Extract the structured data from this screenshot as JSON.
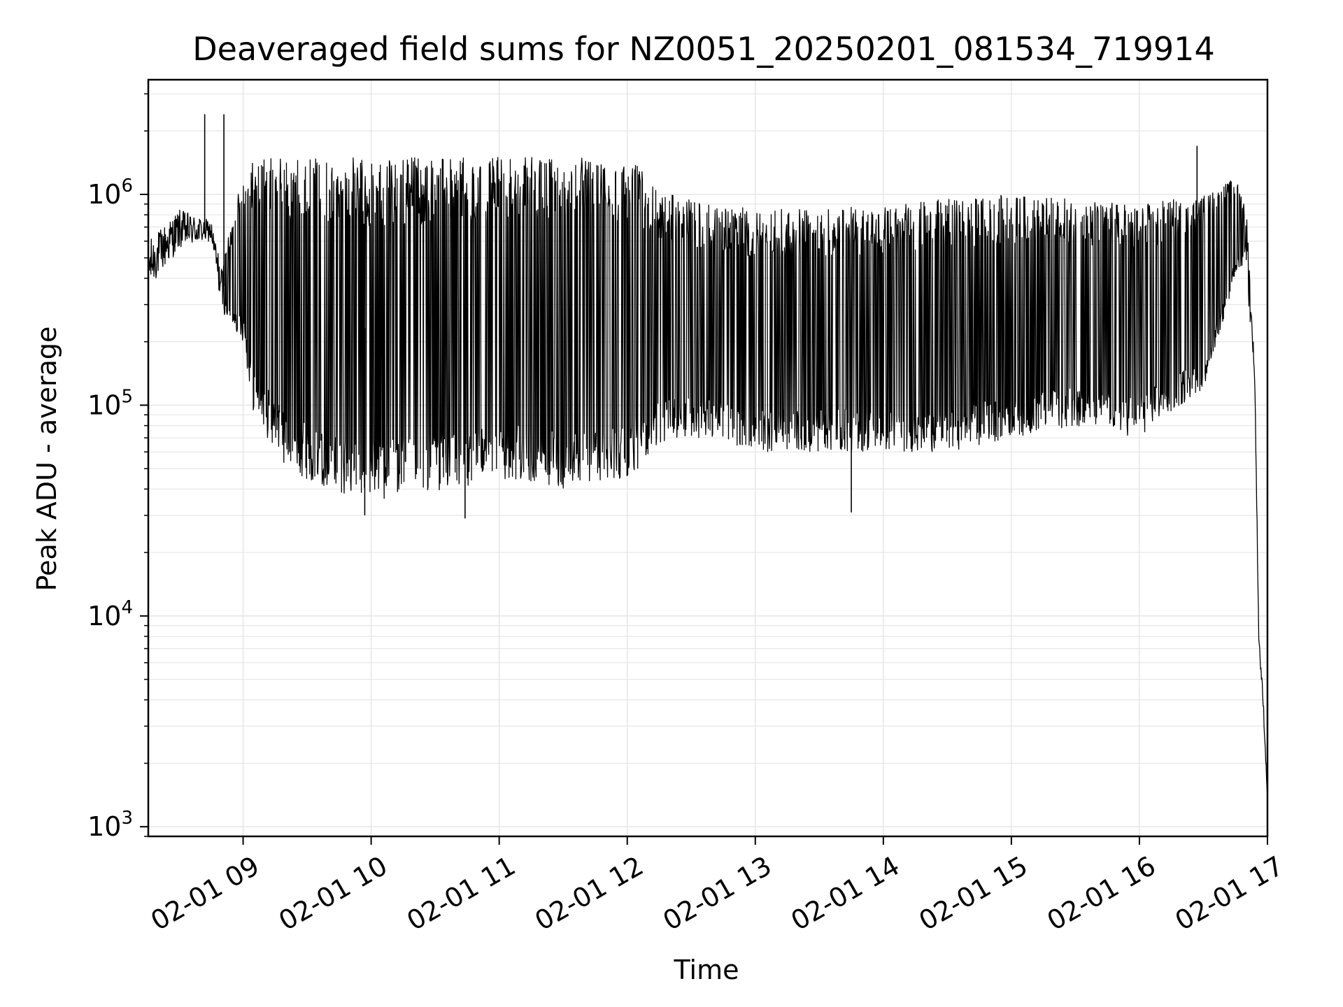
{
  "chart_data": {
    "type": "line",
    "title": "Deaveraged field sums for NZ0051_20250201_081534_719914",
    "xlabel": "Time",
    "ylabel": "Peak ADU - average",
    "yscale": "log",
    "ylim": [
      900,
      3500000
    ],
    "xlim": [
      "2025-02-01 08:15:34",
      "2025-02-01 17:00:00"
    ],
    "x_tick_labels": [
      "02-01 09",
      "02-01 10",
      "02-01 11",
      "02-01 12",
      "02-01 13",
      "02-01 14",
      "02-01 15",
      "02-01 16",
      "02-01 17"
    ],
    "y_tick_labels": [
      {
        "base": "10",
        "exp": "3"
      },
      {
        "base": "10",
        "exp": "4"
      },
      {
        "base": "10",
        "exp": "5"
      },
      {
        "base": "10",
        "exp": "6"
      }
    ],
    "grid": true,
    "colors": {
      "line": "#000000",
      "grid": "#e6e6e6",
      "axes": "#000000"
    },
    "envelope": {
      "x": [
        "2025-02-01 08:15:34",
        "2025-02-01 08:30",
        "2025-02-01 08:45",
        "2025-02-01 08:50",
        "2025-02-01 09:00",
        "2025-02-01 09:05",
        "2025-02-01 09:20",
        "2025-02-01 09:40",
        "2025-02-01 10:00",
        "2025-02-01 10:20",
        "2025-02-01 10:40",
        "2025-02-01 11:00",
        "2025-02-01 11:30",
        "2025-02-01 12:00",
        "2025-02-01 12:20",
        "2025-02-01 12:40",
        "2025-02-01 13:00",
        "2025-02-01 13:30",
        "2025-02-01 14:00",
        "2025-02-01 14:30",
        "2025-02-01 15:00",
        "2025-02-01 15:30",
        "2025-02-01 16:00",
        "2025-02-01 16:30",
        "2025-02-01 16:45",
        "2025-02-01 16:50",
        "2025-02-01 16:54",
        "2025-02-01 16:56",
        "2025-02-01 16:58",
        "2025-02-01 17:00"
      ],
      "high": [
        600000,
        850000,
        750000,
        450000,
        1300000,
        1500000,
        1500000,
        1500000,
        1500000,
        1500000,
        1500000,
        1500000,
        1500000,
        1500000,
        1000000,
        900000,
        850000,
        850000,
        900000,
        950000,
        1000000,
        950000,
        900000,
        1000000,
        1200000,
        900000,
        200000,
        10000,
        5000,
        1500
      ],
      "low": [
        350000,
        550000,
        600000,
        280000,
        200000,
        90000,
        50000,
        40000,
        35000,
        38000,
        40000,
        45000,
        40000,
        45000,
        70000,
        70000,
        60000,
        60000,
        60000,
        60000,
        70000,
        80000,
        70000,
        120000,
        400000,
        500000,
        100000,
        6000,
        3000,
        1300
      ]
    },
    "spikes": [
      {
        "x": "2025-02-01 08:42",
        "y": 2400000
      },
      {
        "x": "2025-02-01 08:51",
        "y": 2400000
      },
      {
        "x": "2025-02-01 09:57",
        "y": 30000
      },
      {
        "x": "2025-02-01 10:44",
        "y": 29000
      },
      {
        "x": "2025-02-01 13:45",
        "y": 31000
      },
      {
        "x": "2025-02-01 16:27",
        "y": 1700000
      }
    ]
  }
}
